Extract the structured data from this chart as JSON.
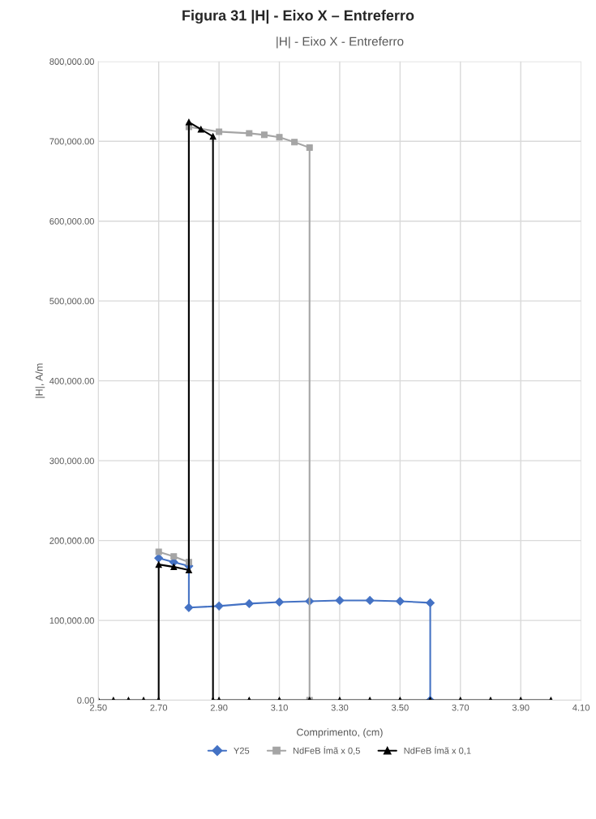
{
  "chart_data": {
    "type": "line",
    "title": "Figura 31 |H| - Eixo X – Entreferro",
    "subtitle": "|H| - Eixo X - Entreferro",
    "xlabel": "Comprimento, (cm)",
    "ylabel": "|H|, A/m",
    "series": [
      {
        "name": "Y25",
        "color": "#4472c4",
        "marker": "diamond",
        "x": [
          2.7,
          2.75,
          2.8,
          2.8,
          2.9,
          3.0,
          3.1,
          3.2,
          3.3,
          3.4,
          3.5,
          3.6,
          3.6
        ],
        "values": [
          178000,
          173000,
          168000,
          116000,
          118000,
          121000,
          123000,
          124000,
          125000,
          125000,
          124000,
          122000,
          0
        ]
      },
      {
        "name": "NdFeB Ímã x 0,5",
        "color": "#a5a5a5",
        "marker": "square",
        "x": [
          2.7,
          2.75,
          2.8,
          2.8,
          2.9,
          3.0,
          3.05,
          3.1,
          3.15,
          3.2,
          3.2
        ],
        "values": [
          186000,
          180000,
          173000,
          718000,
          712000,
          710000,
          708000,
          705000,
          699000,
          692000,
          0
        ]
      },
      {
        "name": "NdFeB Ímã x 0,1",
        "color": "#000000",
        "marker": "triangle",
        "x": [
          2.5,
          2.55,
          2.6,
          2.65,
          2.7,
          2.7,
          2.75,
          2.8,
          2.8,
          2.84,
          2.88,
          2.88,
          2.9,
          3.0,
          3.1,
          3.2,
          3.3,
          3.4,
          3.5,
          3.6,
          3.7,
          3.8,
          3.9,
          4.0
        ],
        "values": [
          0,
          0,
          0,
          0,
          0,
          170000,
          167000,
          163000,
          724000,
          715000,
          706000,
          0,
          0,
          0,
          0,
          0,
          0,
          0,
          0,
          0,
          0,
          0,
          0,
          0
        ]
      }
    ],
    "xlim": [
      2.5,
      4.1
    ],
    "xticks": [
      {
        "value": 2.5,
        "label": "2.50"
      },
      {
        "value": 2.7,
        "label": "2.70"
      },
      {
        "value": 2.9,
        "label": "2.90"
      },
      {
        "value": 3.1,
        "label": "3.10"
      },
      {
        "value": 3.3,
        "label": "3.30"
      },
      {
        "value": 3.5,
        "label": "3.50"
      },
      {
        "value": 3.7,
        "label": "3.70"
      },
      {
        "value": 3.9,
        "label": "3.90"
      },
      {
        "value": 4.1,
        "label": "4.10"
      }
    ],
    "ylim": [
      0,
      800000
    ],
    "yticks": [
      {
        "value": 0,
        "label": "0.00"
      },
      {
        "value": 100000,
        "label": "100,000.00"
      },
      {
        "value": 200000,
        "label": "200,000.00"
      },
      {
        "value": 300000,
        "label": "300,000.00"
      },
      {
        "value": 400000,
        "label": "400,000.00"
      },
      {
        "value": 500000,
        "label": "500,000.00"
      },
      {
        "value": 600000,
        "label": "600,000.00"
      },
      {
        "value": 700000,
        "label": "700,000.00"
      },
      {
        "value": 800000,
        "label": "800,000.00"
      }
    ],
    "grid": true,
    "legend": "bottom",
    "line_style": "solid"
  }
}
